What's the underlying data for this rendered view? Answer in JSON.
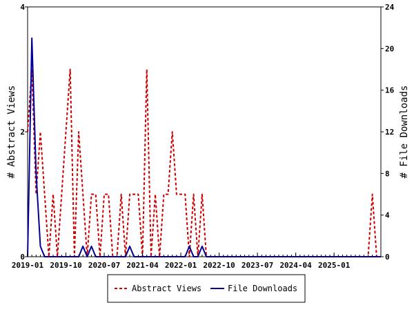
{
  "chart_data": {
    "type": "line",
    "left_axis": {
      "label": "# Abstract Views",
      "ylim": [
        0,
        4
      ],
      "ticks": [
        "0",
        "2",
        "4"
      ]
    },
    "right_axis": {
      "label": "# File Downloads",
      "ylim": [
        0,
        24
      ],
      "ticks": [
        "0",
        "4",
        "8",
        "12",
        "16",
        "20",
        "24"
      ]
    },
    "x_axis": {
      "range_months": [
        "2019-01",
        "2025-12"
      ],
      "tick_labels": [
        "2019-01",
        "2019-10",
        "2020-07",
        "2021-04",
        "2022-01",
        "2022-10",
        "2023-07",
        "2024-04",
        "2025-01"
      ]
    },
    "legend": {
      "placement": "bottom-center"
    },
    "series": [
      {
        "name": "Abstract Views",
        "axis": "left",
        "color": "#cc0000",
        "dash": true,
        "values": [
          2,
          3,
          1,
          2,
          1,
          0,
          1,
          0,
          1,
          2,
          3,
          0,
          2,
          1,
          0,
          1,
          1,
          0,
          1,
          1,
          0,
          0,
          1,
          0,
          1,
          1,
          1,
          0,
          3,
          0,
          1,
          0,
          1,
          1,
          2,
          1,
          1,
          1,
          0,
          1,
          0,
          1,
          0,
          0,
          0,
          0,
          0,
          0,
          0,
          0,
          0,
          0,
          0,
          0,
          0,
          0,
          0,
          0,
          0,
          0,
          0,
          0,
          0,
          0,
          0,
          0,
          0,
          0,
          0,
          0,
          0,
          0,
          0,
          0,
          0,
          0,
          0,
          0,
          0,
          0,
          0,
          1,
          0,
          0
        ]
      },
      {
        "name": "File Downloads",
        "axis": "right",
        "color": "#000099",
        "dash": false,
        "values": [
          0,
          21,
          8,
          1,
          0,
          0,
          0,
          0,
          0,
          0,
          0,
          0,
          0,
          1,
          0,
          1,
          0,
          0,
          0,
          0,
          0,
          0,
          0,
          0,
          1,
          0,
          0,
          0,
          0,
          0,
          0,
          0,
          0,
          0,
          0,
          0,
          0,
          0,
          1,
          0,
          0,
          1,
          0,
          0,
          0,
          0,
          0,
          0,
          0,
          0,
          0,
          0,
          0,
          0,
          0,
          0,
          0,
          0,
          0,
          0,
          0,
          0,
          0,
          0,
          0,
          0,
          0,
          0,
          0,
          0,
          0,
          0,
          0,
          0,
          0,
          0,
          0,
          0,
          0,
          0,
          0,
          0,
          0,
          0
        ]
      }
    ]
  }
}
